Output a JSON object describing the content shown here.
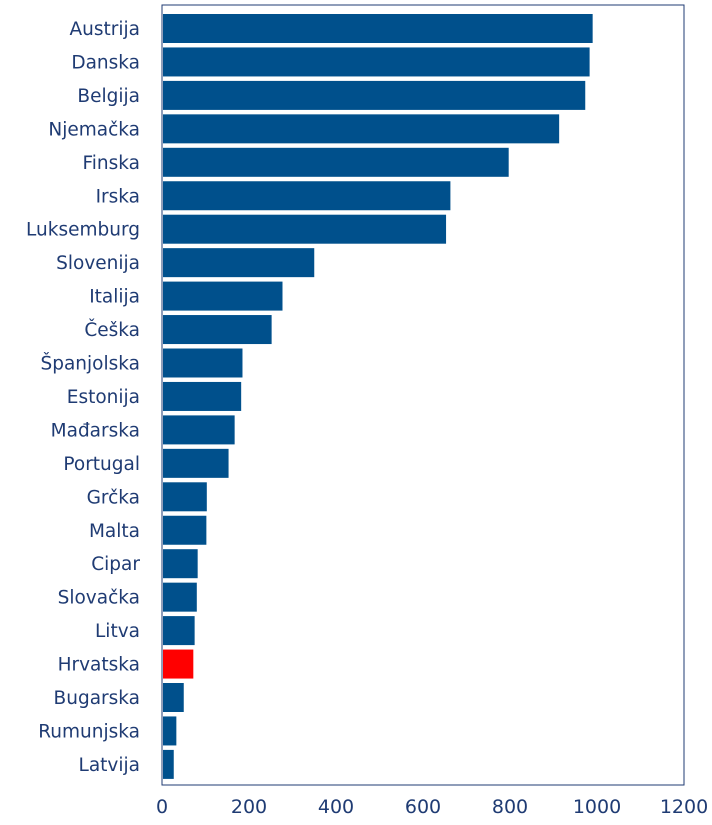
{
  "chart_data": {
    "type": "bar",
    "orientation": "horizontal",
    "categories": [
      "Austrija",
      "Danska",
      "Belgija",
      "Njemačka",
      "Finska",
      "Irska",
      "Luksemburg",
      "Slovenija",
      "Italija",
      "Češka",
      "Španjolska",
      "Estonija",
      "Mađarska",
      "Portugal",
      "Grčka",
      "Malta",
      "Cipar",
      "Slovačka",
      "Litva",
      "Hrvatska",
      "Bugarska",
      "Rumunjska",
      "Latvija"
    ],
    "values": [
      990,
      983,
      973,
      913,
      797,
      663,
      653,
      350,
      277,
      252,
      185,
      182,
      167,
      153,
      103,
      102,
      82,
      80,
      75,
      72,
      50,
      33,
      27
    ],
    "highlight_category": "Hrvatska",
    "xlim": [
      0,
      1200
    ],
    "xticks": [
      0,
      200,
      400,
      600,
      800,
      1000,
      1200
    ],
    "colors": {
      "bar": "#00508c",
      "highlight": "#ff0000",
      "axis": "#1f3b73",
      "frame": "#1f3b73"
    },
    "grid": false,
    "title": "",
    "xlabel": "",
    "ylabel": ""
  }
}
